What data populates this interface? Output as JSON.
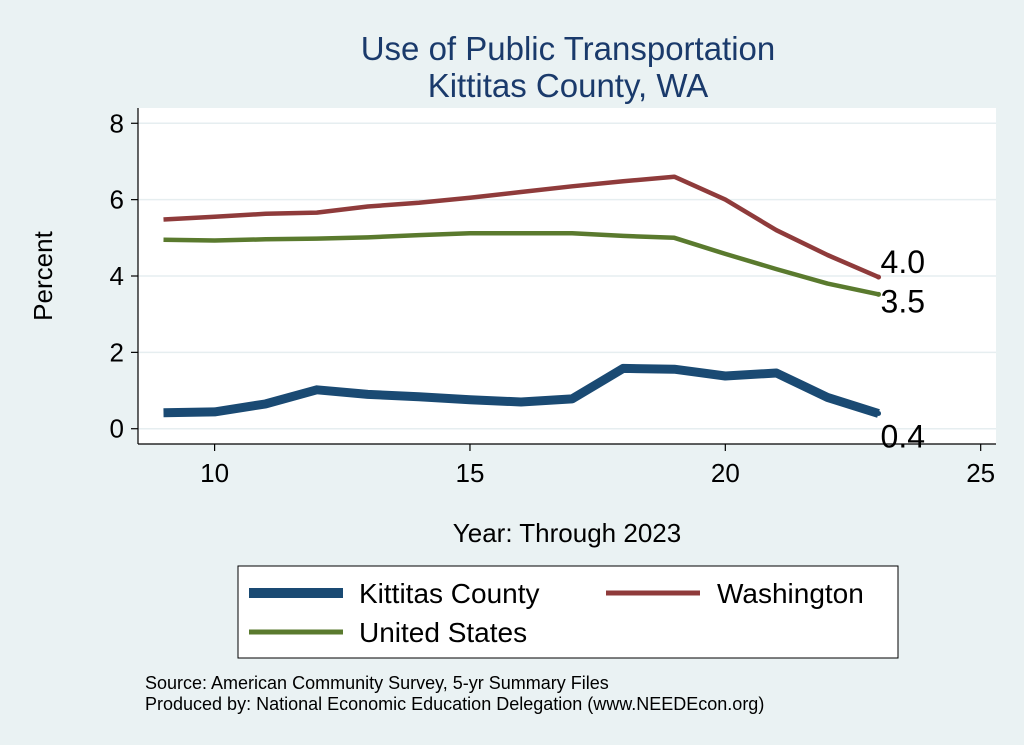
{
  "chart_data": {
    "type": "line",
    "title": [
      "Use of Public Transportation",
      "Kittitas County, WA"
    ],
    "xlabel": "Year: Through 2023",
    "ylabel": "Percent",
    "xlim": [
      8.5,
      25.3
    ],
    "ylim": [
      -0.4,
      8.4
    ],
    "xticks": [
      10,
      15,
      20,
      25
    ],
    "yticks": [
      0,
      2,
      4,
      6,
      8
    ],
    "grid": true,
    "x": [
      9,
      10,
      11,
      12,
      13,
      14,
      15,
      16,
      17,
      18,
      19,
      20,
      21,
      22,
      23
    ],
    "series": [
      {
        "name": "Kittitas County",
        "color": "#1a4a73",
        "width": 9,
        "values": [
          0.42,
          0.44,
          0.65,
          1.02,
          0.9,
          0.84,
          0.76,
          0.7,
          0.78,
          1.58,
          1.56,
          1.38,
          1.46,
          0.82,
          0.4
        ],
        "end_label": "0.4",
        "end_label_dy": 34
      },
      {
        "name": "Washington",
        "color": "#8f3b3b",
        "width": 4.5,
        "values": [
          5.48,
          5.55,
          5.63,
          5.66,
          5.82,
          5.92,
          6.05,
          6.2,
          6.35,
          6.48,
          6.6,
          6.0,
          5.2,
          4.55,
          3.97
        ],
        "end_label": "4.0",
        "end_label_dy": -4
      },
      {
        "name": "United States",
        "color": "#5a7a2e",
        "width": 4.5,
        "values": [
          4.95,
          4.93,
          4.96,
          4.98,
          5.01,
          5.07,
          5.12,
          5.12,
          5.12,
          5.05,
          5.0,
          4.58,
          4.18,
          3.8,
          3.52
        ],
        "end_label": "3.5",
        "end_label_dy": 18
      }
    ],
    "legend_position": "bottom"
  },
  "footer": {
    "source": "Source: American Community Survey, 5-yr Summary Files",
    "produced": "Produced by: National Economic Education Delegation (www.NEEDEcon.org)"
  }
}
